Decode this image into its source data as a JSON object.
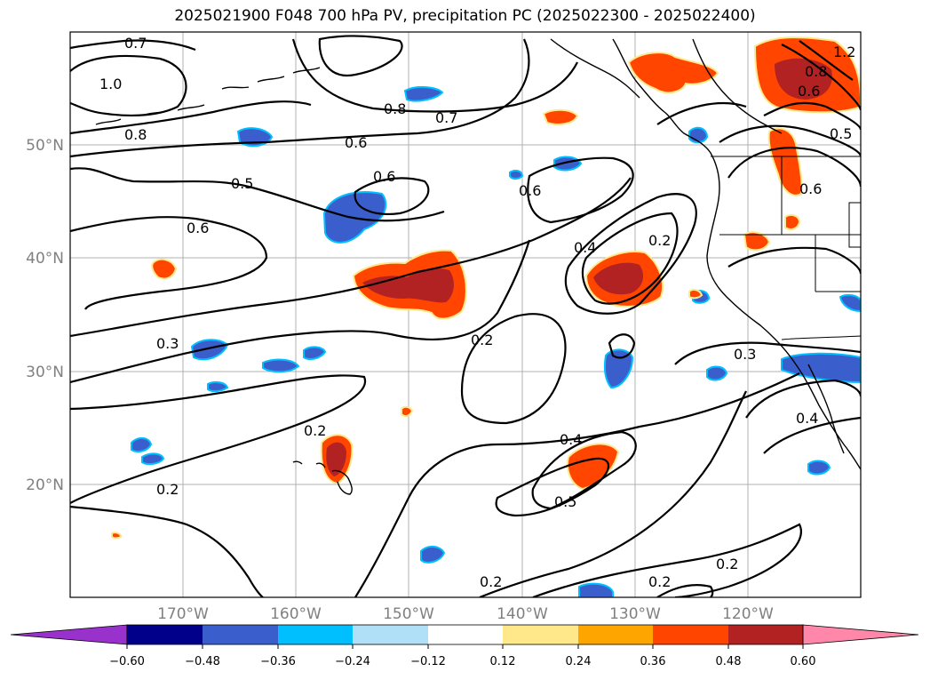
{
  "title": "2025021900 F048 700 hPa PV, precipitation PC (2025022300 - 2025022400)",
  "lat_labels": [
    "50°N",
    "40°N",
    "30°N",
    "20°N"
  ],
  "lon_labels": [
    "170°W",
    "160°W",
    "150°W",
    "140°W",
    "130°W",
    "120°W"
  ],
  "colorbar": {
    "ticks": [
      "−0.60",
      "−0.48",
      "−0.36",
      "−0.24",
      "−0.12",
      "0.12",
      "0.24",
      "0.36",
      "0.48",
      "0.60"
    ],
    "colors": [
      "#9932cc",
      "#00008b",
      "#3a5fcd",
      "#00bfff",
      "#b0e0f8",
      "#ffffff",
      "#ffe88a",
      "#ffa500",
      "#ff4500",
      "#b22222",
      "#ff88aa"
    ]
  },
  "contour_labels": [
    "0.7",
    "1.0",
    "0.8",
    "0.8",
    "0.7",
    "0.6",
    "0.5",
    "0.6",
    "0.6",
    "0.6",
    "0.4",
    "0.2",
    "0.3",
    "0.2",
    "0.3",
    "0.2",
    "0.2",
    "0.4",
    "0.5",
    "0.2",
    "0.2",
    "0.2",
    "0.4",
    "0.5",
    "0.6",
    "0.8",
    "1.2",
    "0.6"
  ]
}
